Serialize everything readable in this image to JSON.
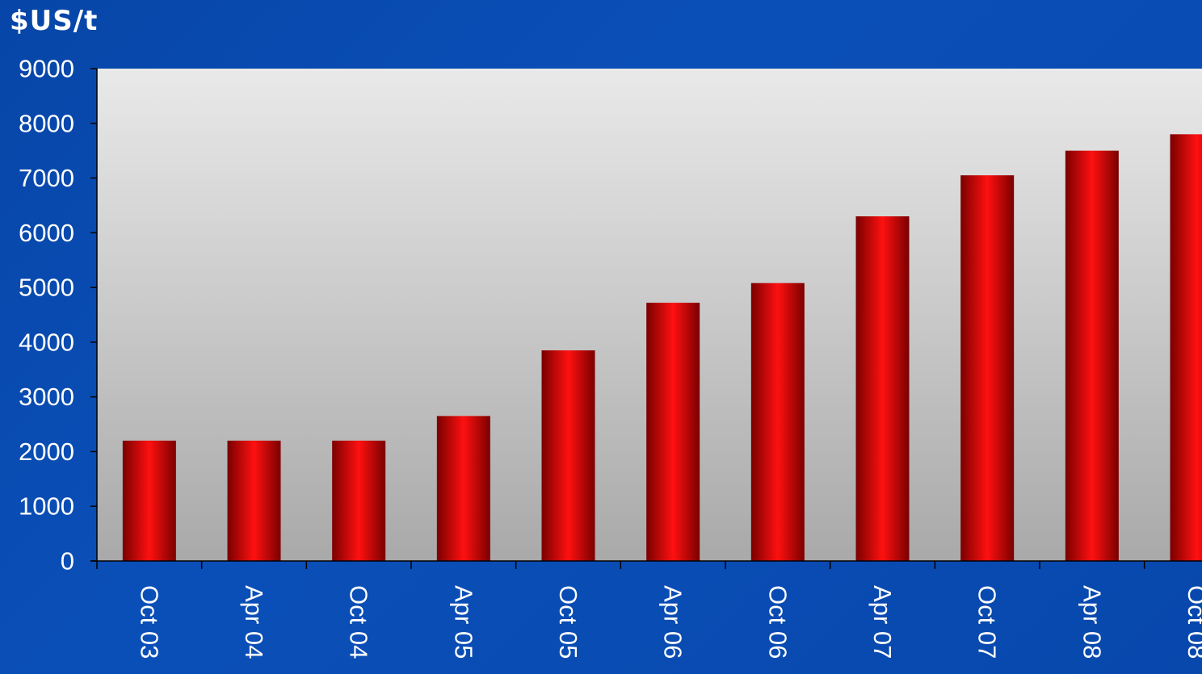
{
  "chart_data": {
    "type": "bar",
    "ylabel": "$US/t",
    "categories": [
      "Oct 03",
      "Apr 04",
      "Oct 04",
      "Apr 05",
      "Oct 05",
      "Apr 06",
      "Oct 06",
      "Apr 07",
      "Oct 07",
      "Apr 08",
      "Oct 08"
    ],
    "values": [
      2200,
      2200,
      2200,
      2650,
      3850,
      4720,
      5080,
      6300,
      7050,
      7500,
      7800
    ],
    "ylim": [
      0,
      9000
    ],
    "yticks": [
      0,
      1000,
      2000,
      3000,
      4000,
      5000,
      6000,
      7000,
      8000,
      9000
    ],
    "grid": false,
    "bar_color": "#e00000"
  }
}
